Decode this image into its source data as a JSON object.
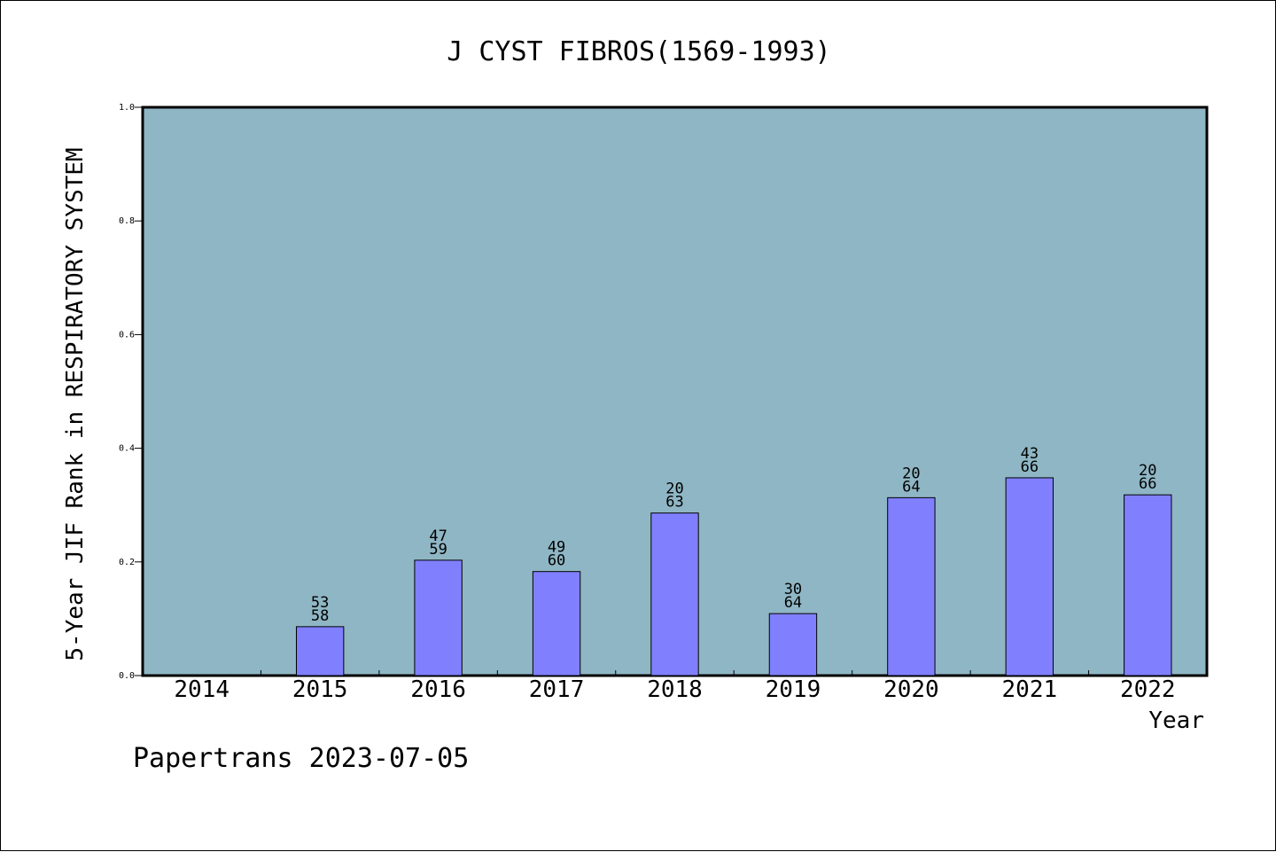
{
  "colors": {
    "plot_background": "#8fb6c4",
    "bar_fill": "#8080ff",
    "bar_stroke": "#000000",
    "axis": "#000000",
    "page_background": "#ffffff"
  },
  "chart_data": {
    "type": "bar",
    "title": "J CYST FIBROS(1569-1993)",
    "xlabel": "Year",
    "ylabel": "5-Year JIF Rank in RESPIRATORY SYSTEM",
    "footer": "Papertrans 2023-07-05",
    "ylim": [
      0,
      1.0
    ],
    "yticks": [
      "0.0",
      "0.2",
      "0.4",
      "0.6",
      "0.8",
      "1.0"
    ],
    "categories": [
      "2014",
      "2015",
      "2016",
      "2017",
      "2018",
      "2019",
      "2020",
      "2021",
      "2022"
    ],
    "values": [
      null,
      0.086,
      0.203,
      0.183,
      0.286,
      0.109,
      0.313,
      0.348,
      0.318
    ],
    "rank": [
      null,
      "53",
      "47",
      "49",
      "20",
      "30",
      "20",
      "43",
      "20"
    ],
    "total": [
      null,
      "58",
      "59",
      "60",
      "63",
      "64",
      "64",
      "66",
      "66"
    ],
    "grid": false,
    "legend": "none"
  }
}
